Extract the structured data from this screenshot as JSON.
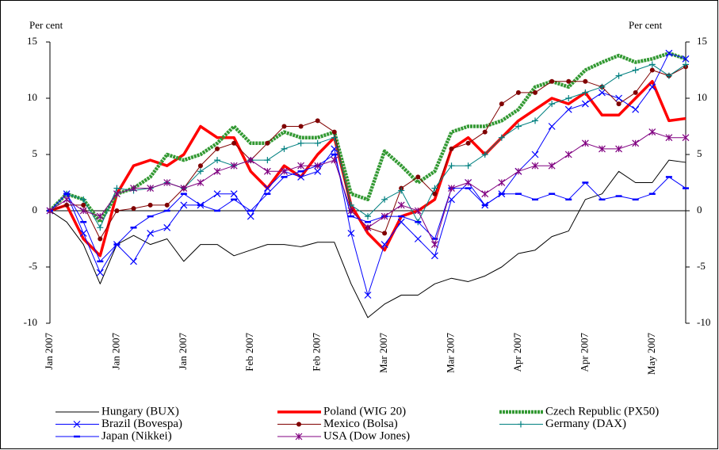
{
  "chart_data": {
    "type": "line",
    "y_label": "Per cent",
    "y2_label": "Per cent",
    "categories": [
      "Jan 2007",
      null,
      null,
      null,
      "Jan 2007",
      null,
      null,
      null,
      "Jan 2007",
      null,
      null,
      null,
      "Feb 2007",
      null,
      null,
      null,
      "Feb 2007",
      null,
      null,
      null,
      "Mar 2007",
      null,
      null,
      null,
      "Mar 2007",
      null,
      null,
      null,
      "Apr 2007",
      null,
      null,
      null,
      "Apr 2007",
      null,
      null,
      null,
      "May 2007",
      null,
      null
    ],
    "ylim": [
      -10,
      15
    ],
    "yticks": [
      -10,
      -5,
      0,
      5,
      10,
      15
    ],
    "y2lim": [
      -10,
      15
    ],
    "y2ticks": [
      -10,
      -5,
      0,
      5,
      10,
      15
    ],
    "series": [
      {
        "name": "Hungary (BUX)",
        "color": "#000000",
        "width": 1,
        "marker": "none",
        "values": [
          0,
          -1,
          -3,
          -6.5,
          -3,
          -2.2,
          -3,
          -2.5,
          -4.5,
          -3,
          -3,
          -4,
          -3.5,
          -3,
          -3,
          -3.2,
          -2.8,
          -2.8,
          -6.5,
          -9.5,
          -8.3,
          -7.5,
          -7.5,
          -6.5,
          -6,
          -6.3,
          -5.8,
          -5,
          -3.8,
          -3.5,
          -2.3,
          -1.8,
          1,
          1.5,
          3.5,
          2.5,
          2.5,
          4.5,
          4.3
        ]
      },
      {
        "name": "Poland (WIG 20)",
        "color": "#ff0000",
        "width": 3.5,
        "marker": "none",
        "values": [
          0,
          0.5,
          -2.5,
          -4,
          1.5,
          4,
          4.5,
          4,
          5,
          7.5,
          6.5,
          6.5,
          3.5,
          2,
          4,
          3,
          5,
          6.5,
          0.5,
          -2,
          -3.5,
          -0.5,
          0,
          1,
          5.5,
          6.5,
          5,
          6.5,
          8,
          9,
          10,
          9.5,
          10.5,
          8.5,
          8.5,
          10,
          11.5,
          8,
          8.2
        ]
      },
      {
        "name": "Czech Republic (PX50)",
        "color": "#339933",
        "width": 4.5,
        "marker": "none",
        "values": [
          0,
          1.5,
          1,
          -1,
          1.5,
          2,
          3,
          5,
          4.5,
          5,
          6,
          7.5,
          6,
          6,
          7,
          6.5,
          6.5,
          7,
          1.5,
          1,
          5.3,
          4,
          2.5,
          3.5,
          7,
          7.5,
          7.5,
          8,
          9,
          11,
          11.5,
          11,
          12.5,
          13.2,
          13.8,
          13.2,
          13.5,
          14,
          13.5
        ]
      },
      {
        "name": "Brazil (Bovespa)",
        "color": "#0000ff",
        "width": 1,
        "marker": "x",
        "values": [
          0,
          1.5,
          -2,
          -5.5,
          -3,
          -4.5,
          -2,
          -1.5,
          0.5,
          0.5,
          1.5,
          1.5,
          -0.5,
          2,
          3.5,
          3,
          3.5,
          5.5,
          -2,
          -7.5,
          -3,
          -1,
          -2.5,
          -4,
          1,
          2.5,
          0.5,
          1.5,
          3.5,
          5,
          7.5,
          9,
          9.5,
          10.5,
          10,
          9,
          11,
          14,
          13.5
        ]
      },
      {
        "name": "Mexico (Bolsa)",
        "color": "#800000",
        "width": 1,
        "marker": "circle",
        "values": [
          0,
          0.5,
          0.5,
          -2.5,
          0,
          0.2,
          0.5,
          0.5,
          2,
          4,
          5.5,
          6,
          4.5,
          6,
          7.5,
          7.5,
          8,
          7,
          0,
          -1.5,
          -2,
          2,
          3,
          1.5,
          5.5,
          6,
          7,
          9.5,
          10.5,
          10.5,
          11.5,
          11.5,
          11.5,
          11,
          9.5,
          10.5,
          12.5,
          12,
          12.8
        ]
      },
      {
        "name": "Germany (DAX)",
        "color": "#008080",
        "width": 1,
        "marker": "plus",
        "values": [
          0,
          1.5,
          1,
          -1.5,
          2,
          1.8,
          2,
          2.5,
          2,
          3.5,
          4.5,
          4,
          4.5,
          4.5,
          5.5,
          6,
          6,
          6.5,
          0.5,
          -0.5,
          1,
          1.8,
          -1,
          2,
          4,
          4,
          5,
          6.5,
          7.5,
          8,
          9.5,
          10,
          10.5,
          11,
          12,
          12.5,
          13,
          12,
          13
        ]
      },
      {
        "name": "Japan (Nikkei)",
        "color": "#0000ff",
        "width": 1,
        "marker": "dash",
        "values": [
          0,
          1.5,
          -1,
          -4.5,
          -3,
          -1.5,
          -0.5,
          0,
          1.5,
          0.5,
          0,
          1,
          0,
          1.5,
          3,
          3.5,
          4,
          5,
          -0.5,
          -1,
          -0.5,
          -0.5,
          -1,
          -2.5,
          2,
          2,
          0.5,
          1.5,
          1.5,
          1,
          1.5,
          1,
          2.5,
          1,
          1.3,
          1,
          1.5,
          3,
          2
        ]
      },
      {
        "name": "USA (Dow Jones)",
        "color": "#800080",
        "width": 1,
        "marker": "star",
        "values": [
          0,
          1,
          0,
          -0.5,
          1.5,
          2,
          2,
          2.5,
          2,
          2.5,
          3.5,
          4,
          4.5,
          3.5,
          3.5,
          4,
          4,
          4.5,
          0,
          -1.5,
          -0.5,
          0.5,
          0,
          -3,
          2,
          2.5,
          1.5,
          2.5,
          3.5,
          4,
          4,
          5,
          6,
          5.5,
          5.5,
          6,
          7,
          6.5,
          6.5
        ]
      }
    ]
  }
}
